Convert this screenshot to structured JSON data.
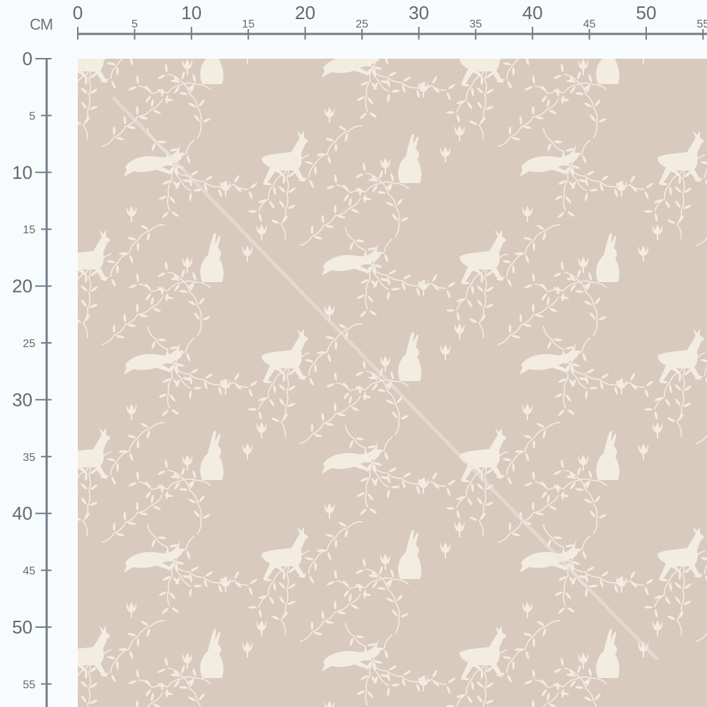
{
  "ruler": {
    "unit": "CM",
    "horizontal_labels": [
      "0",
      "5",
      "10",
      "15",
      "20",
      "25",
      "30",
      "35",
      "40",
      "45",
      "50",
      "55"
    ],
    "vertical_labels": [
      "0",
      "5",
      "10",
      "15",
      "20",
      "25",
      "30",
      "35",
      "40",
      "45",
      "50",
      "55"
    ]
  },
  "fabric": {
    "background_color": "#d8cabc",
    "motif_color": "#f3ece1",
    "motifs": [
      "leaping-rabbit",
      "sitting-hare",
      "deer",
      "leafy-vine",
      "tulip-flower"
    ]
  }
}
